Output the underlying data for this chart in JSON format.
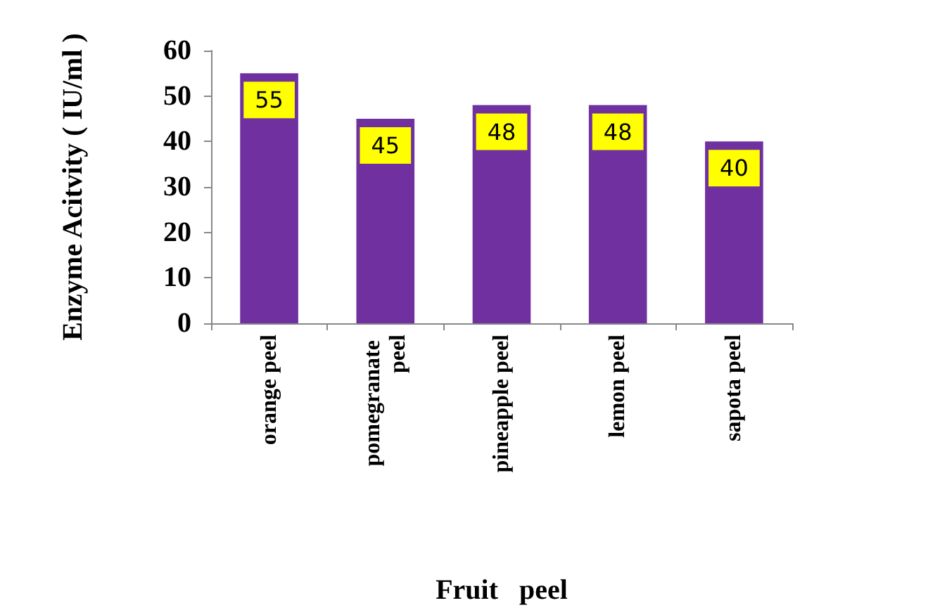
{
  "chart_data": {
    "type": "bar",
    "xlabel": "Fruit   peel",
    "ylabel": "Enzyme Acitvity ( IU/ml )",
    "categories": [
      "orange peel",
      "pomegranate peel",
      "pineapple peel",
      "lemon peel",
      "sapota peel"
    ],
    "values": [
      55,
      45,
      48,
      48,
      40
    ],
    "color": "#7030a0",
    "ylim": [
      0,
      60
    ],
    "yticks": [
      0,
      10,
      20,
      30,
      40,
      50,
      60
    ],
    "grid": false,
    "data_labels": true
  }
}
